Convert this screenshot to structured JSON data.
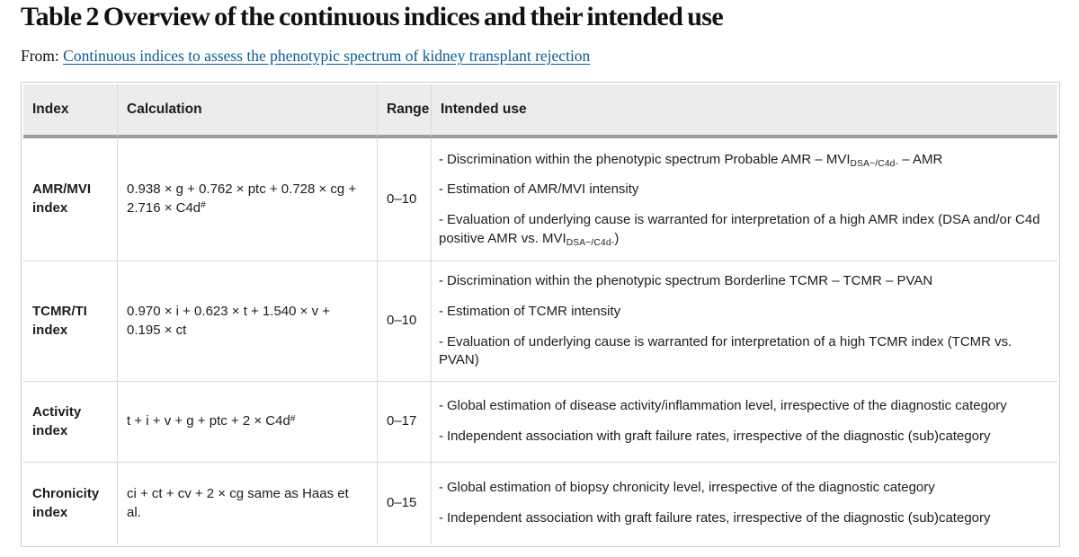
{
  "header": {
    "title": "Table 2 Overview of the continuous indices and their intended use",
    "from_label": "From:",
    "article_link": "Continuous indices to assess the phenotypic spectrum of kidney transplant rejection"
  },
  "colors": {
    "header_bg": "#ececec",
    "border": "#d9d9d9",
    "thick": "#9c9c9c",
    "link": "#0c5c92",
    "text": "#1d1d1d"
  },
  "table": {
    "bullet": "-",
    "headers": [
      "Index",
      "Calculation",
      "Range",
      "Intended use"
    ],
    "rows": [
      {
        "index": "AMR/MVI index",
        "calculation": [
          {
            "t": "0.938 × g + 0.762 × ptc + 0.728 × cg + 2.716 × C4d"
          },
          {
            "sup": "#"
          }
        ],
        "range": "0–10",
        "uses": [
          [
            {
              "t": "Discrimination within the phenotypic spectrum Probable AMR – MVI"
            },
            {
              "sub": "DSA−/C4d-"
            },
            {
              "t": " – AMR"
            }
          ],
          [
            {
              "t": "Estimation of AMR/MVI intensity"
            }
          ],
          [
            {
              "t": "Evaluation of underlying cause is warranted for interpretation of a high AMR index (DSA and/or C4d positive AMR vs. MVI"
            },
            {
              "sub": "DSA−/C4d-"
            },
            {
              "t": ")"
            }
          ]
        ]
      },
      {
        "index": "TCMR/TI index",
        "calculation": [
          {
            "t": "0.970 × i + 0.623 × t + 1.540 × v + 0.195 × ct"
          }
        ],
        "range": "0–10",
        "uses": [
          [
            {
              "t": "Discrimination within the phenotypic spectrum Borderline TCMR – TCMR – PVAN"
            }
          ],
          [
            {
              "t": "Estimation of TCMR intensity"
            }
          ],
          [
            {
              "t": "Evaluation of underlying cause is warranted for interpretation of a high TCMR index (TCMR vs. PVAN)"
            }
          ]
        ]
      },
      {
        "index": "Activity index",
        "calculation": [
          {
            "t": "t + i + v + g + ptc + 2 × C4d"
          },
          {
            "sup": "#"
          }
        ],
        "range": "0–17",
        "uses": [
          [
            {
              "t": "Global estimation of disease activity/inflammation level, irrespective of the diagnostic category"
            }
          ],
          [
            {
              "t": "Independent association with graft failure rates, irrespective of the diagnostic (sub)category"
            }
          ]
        ]
      },
      {
        "index": "Chronicity index",
        "calculation": [
          {
            "t": "ci + ct + cv + 2 × cg same as Haas et al."
          }
        ],
        "range": "0–15",
        "uses": [
          [
            {
              "t": "Global estimation of biopsy chronicity level, irrespective of the diagnostic category"
            }
          ],
          [
            {
              "t": "Independent association with graft failure rates, irrespective of the diagnostic (sub)category"
            }
          ]
        ]
      }
    ]
  }
}
